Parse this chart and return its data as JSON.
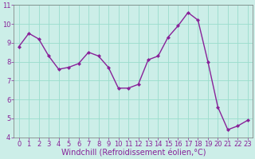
{
  "x": [
    0,
    1,
    2,
    3,
    4,
    5,
    6,
    7,
    8,
    9,
    10,
    11,
    12,
    13,
    14,
    15,
    16,
    17,
    18,
    19,
    20,
    21,
    22,
    23
  ],
  "y": [
    8.8,
    9.5,
    9.2,
    8.3,
    7.6,
    7.7,
    7.9,
    8.5,
    8.3,
    7.7,
    6.6,
    6.6,
    6.8,
    8.1,
    8.3,
    9.3,
    9.9,
    10.6,
    10.2,
    8.0,
    5.6,
    4.4,
    4.6,
    4.9
  ],
  "line_color": "#882299",
  "marker": "D",
  "marker_size": 2.0,
  "bg_color": "#cceee8",
  "grid_color": "#99ddcc",
  "xlabel": "Windchill (Refroidissement éolien,°C)",
  "xlabel_color": "#882299",
  "ylim": [
    4,
    11
  ],
  "xlim": [
    -0.5,
    23.5
  ],
  "yticks": [
    4,
    5,
    6,
    7,
    8,
    9,
    10,
    11
  ],
  "xticks": [
    0,
    1,
    2,
    3,
    4,
    5,
    6,
    7,
    8,
    9,
    10,
    11,
    12,
    13,
    14,
    15,
    16,
    17,
    18,
    19,
    20,
    21,
    22,
    23
  ],
  "tick_label_fontsize": 6.0,
  "xlabel_fontsize": 7.0,
  "linewidth": 1.0
}
